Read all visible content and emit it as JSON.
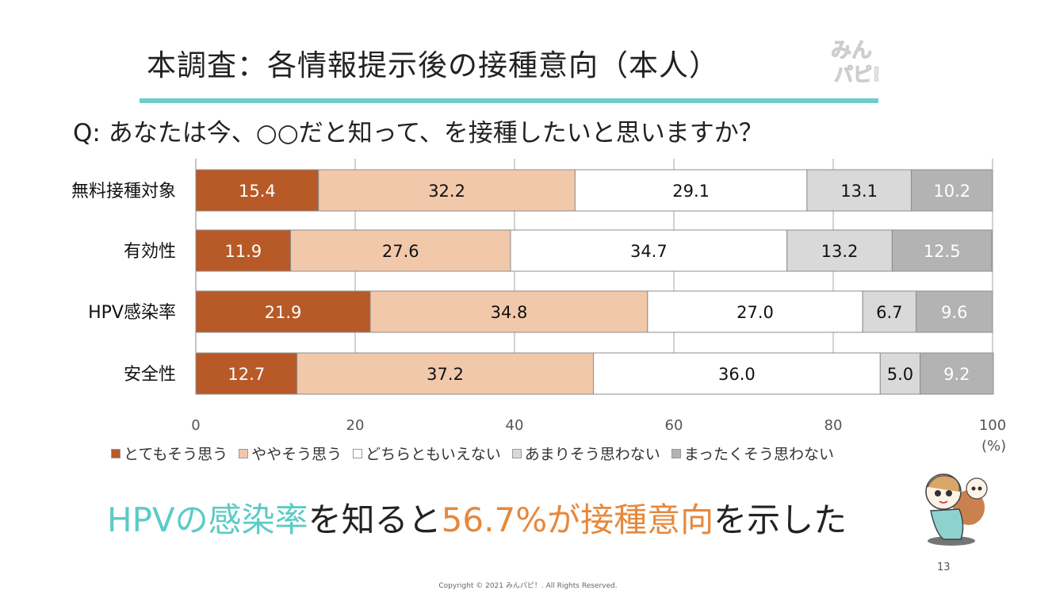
{
  "title": "本調査：各情報提示後の接種意向（本人）",
  "logo_text": "みんパピ!",
  "question": "Q: あなたは今、○○だと知って、を接種したいと思いますか？",
  "conclusion": {
    "part1": "HPVの感染率",
    "part2": "を知ると",
    "part3": "56.7%が接種意向",
    "part4": "を示した"
  },
  "page_number": "13",
  "copyright": "Copyright © 2021 みんパピ！. All Rights Reserved.",
  "chart_data": {
    "type": "bar",
    "orientation": "horizontal",
    "stacked": true,
    "categories": [
      "無料接種対象",
      "有効性",
      "HPV感染率",
      "安全性"
    ],
    "series": [
      {
        "name": "とてもそう思う",
        "color": "#b75a28",
        "label_color": "#ffffff",
        "values": [
          15.4,
          11.9,
          21.9,
          12.7
        ]
      },
      {
        "name": "ややそう思う",
        "color": "#f2c8ab",
        "label_color": "#111111",
        "values": [
          32.2,
          27.6,
          34.8,
          37.2
        ]
      },
      {
        "name": "どちらともいえない",
        "color": "#ffffff",
        "label_color": "#111111",
        "values": [
          29.1,
          34.7,
          27.0,
          36.0
        ]
      },
      {
        "name": "あまりそう思わない",
        "color": "#d9d9d9",
        "label_color": "#111111",
        "values": [
          13.1,
          13.2,
          6.7,
          5.0
        ]
      },
      {
        "name": "まったくそう思わない",
        "color": "#b3b3b3",
        "label_color": "#ffffff",
        "values": [
          10.2,
          12.5,
          9.6,
          9.2
        ]
      }
    ],
    "xlim": [
      0,
      100
    ],
    "xticks": [
      "0",
      "20",
      "40",
      "60",
      "80",
      "100"
    ],
    "xunit": "(%)",
    "grid": true,
    "legend_position": "bottom"
  }
}
